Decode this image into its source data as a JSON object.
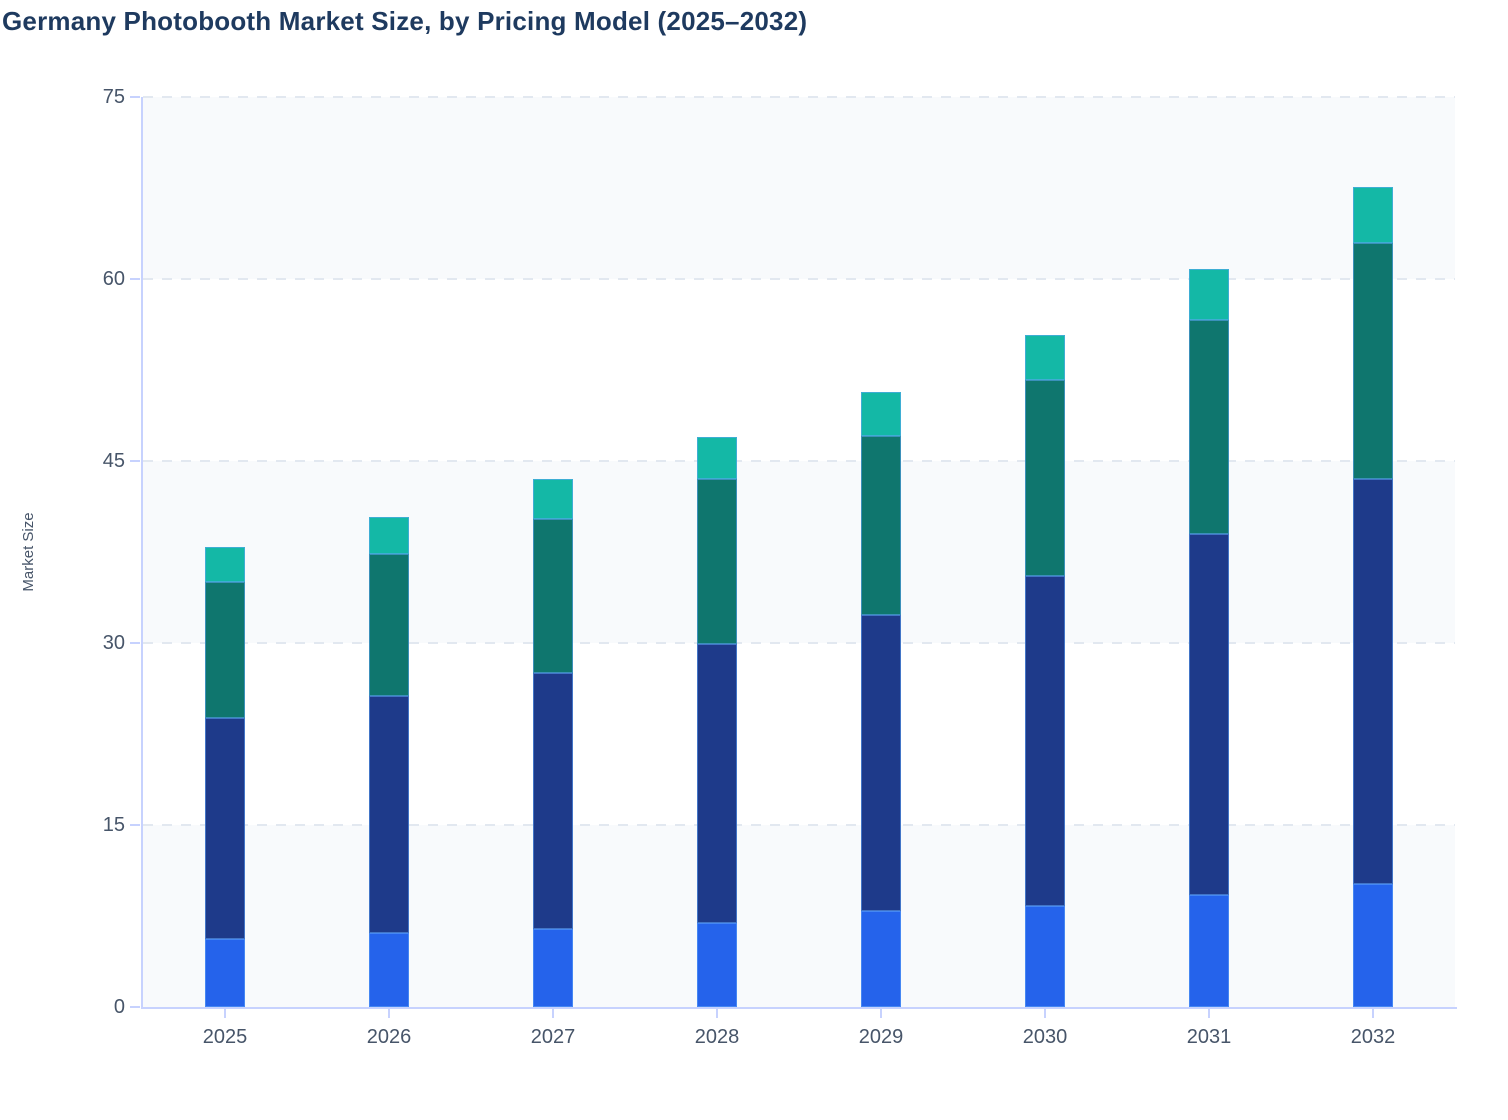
{
  "title": {
    "text": "Germany Photobooth Market Size, by Pricing Model (2025–2032)",
    "color": "#1e3a5f"
  },
  "chart_data": {
    "type": "bar",
    "stacked": true,
    "title": "Germany Photobooth Market Size, by Pricing Model (2025–2032)",
    "xlabel": "",
    "ylabel": "Market Size",
    "ylim": [
      0,
      75
    ],
    "yticks": [
      0,
      15,
      30,
      45,
      60,
      75
    ],
    "ytick_labels": [
      "0",
      "15",
      "30",
      "45",
      "60",
      "75"
    ],
    "categories": [
      "2025",
      "2026",
      "2027",
      "2028",
      "2029",
      "2030",
      "2031",
      "2032"
    ],
    "series": [
      {
        "name": "segment-bottom-bright-blue",
        "color": "#2563eb",
        "values": [
          5.6,
          6.1,
          6.4,
          6.9,
          7.9,
          8.3,
          9.2,
          10.1
        ]
      },
      {
        "name": "segment-dark-navy",
        "color": "#1e3a8a",
        "values": [
          18.2,
          19.5,
          21.1,
          23.0,
          24.4,
          27.2,
          29.8,
          33.4
        ]
      },
      {
        "name": "segment-dark-teal",
        "color": "#0f766e",
        "values": [
          11.2,
          11.7,
          12.7,
          13.6,
          14.8,
          16.2,
          17.6,
          19.5
        ]
      },
      {
        "name": "segment-top-mint-teal",
        "color": "#14b8a6",
        "values": [
          2.9,
          3.1,
          3.3,
          3.5,
          3.6,
          3.7,
          4.2,
          4.6
        ]
      }
    ],
    "stack_totals": [
      37.9,
      40.4,
      43.5,
      47.0,
      50.7,
      55.4,
      60.8,
      67.6
    ],
    "legend": "none",
    "grid": "horizontal-dashed",
    "colors": {
      "grid_line": "#e2e8f0",
      "axis_line": "#c7d2fe",
      "band_light": "#f8fafc",
      "band_white": "#ffffff",
      "tick_label": "#475569",
      "segment_border": "rgba(96,165,250,0.55)"
    }
  }
}
